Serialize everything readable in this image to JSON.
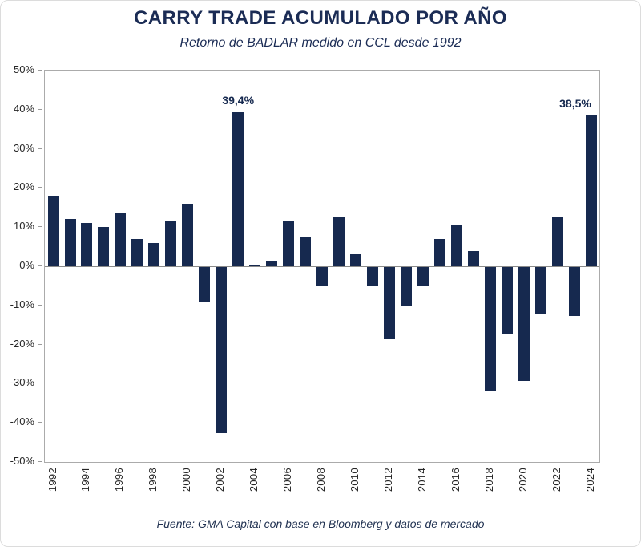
{
  "footer": {
    "source": "Fuente: GMA Capital con base en Bloomberg y datos de mercado"
  },
  "colors": {
    "bar": "#16294f",
    "title": "#1b2c55",
    "annotation": "#16294f",
    "axis_text": "#262626",
    "plot_border": "#ababab",
    "zero_line": "#8a8a8a"
  },
  "chart_data": {
    "type": "bar",
    "title": "CARRY TRADE ACUMULADO POR AÑO",
    "subtitle": "Retorno de BADLAR medido en CCL desde 1992",
    "unit": "%",
    "categories": [
      1992,
      1993,
      1994,
      1995,
      1996,
      1997,
      1998,
      1999,
      2000,
      2001,
      2002,
      2003,
      2004,
      2005,
      2006,
      2007,
      2008,
      2009,
      2010,
      2011,
      2012,
      2013,
      2014,
      2015,
      2016,
      2017,
      2018,
      2019,
      2020,
      2021,
      2022,
      2023,
      2024
    ],
    "values": [
      18,
      12,
      11,
      10,
      13.5,
      7,
      6,
      11.5,
      16,
      -9,
      -42.5,
      39.4,
      0.5,
      1.5,
      11.5,
      7.5,
      -5,
      12.5,
      3,
      -5,
      -18.5,
      -10,
      -5,
      7,
      10.5,
      4,
      -31.5,
      -17,
      -29,
      -12,
      12.5,
      -12.5,
      38.5
    ],
    "ylim": [
      -50,
      50
    ],
    "ylabel": "",
    "xlabel": "",
    "grid": false,
    "legend": false,
    "y_ticks": [
      "50%",
      "40%",
      "30%",
      "20%",
      "10%",
      "0%",
      "-10%",
      "-20%",
      "-30%",
      "-40%",
      "-50%"
    ],
    "x_tick_labels": [
      "1992",
      "1994",
      "1996",
      "1998",
      "2000",
      "2002",
      "2004",
      "2006",
      "2008",
      "2010",
      "2012",
      "2014",
      "2016",
      "2018",
      "2020",
      "2022",
      "2024"
    ],
    "annotations": [
      {
        "category": 2003,
        "label": "39,4%"
      },
      {
        "category": 2024,
        "label": "38,5%"
      }
    ]
  }
}
